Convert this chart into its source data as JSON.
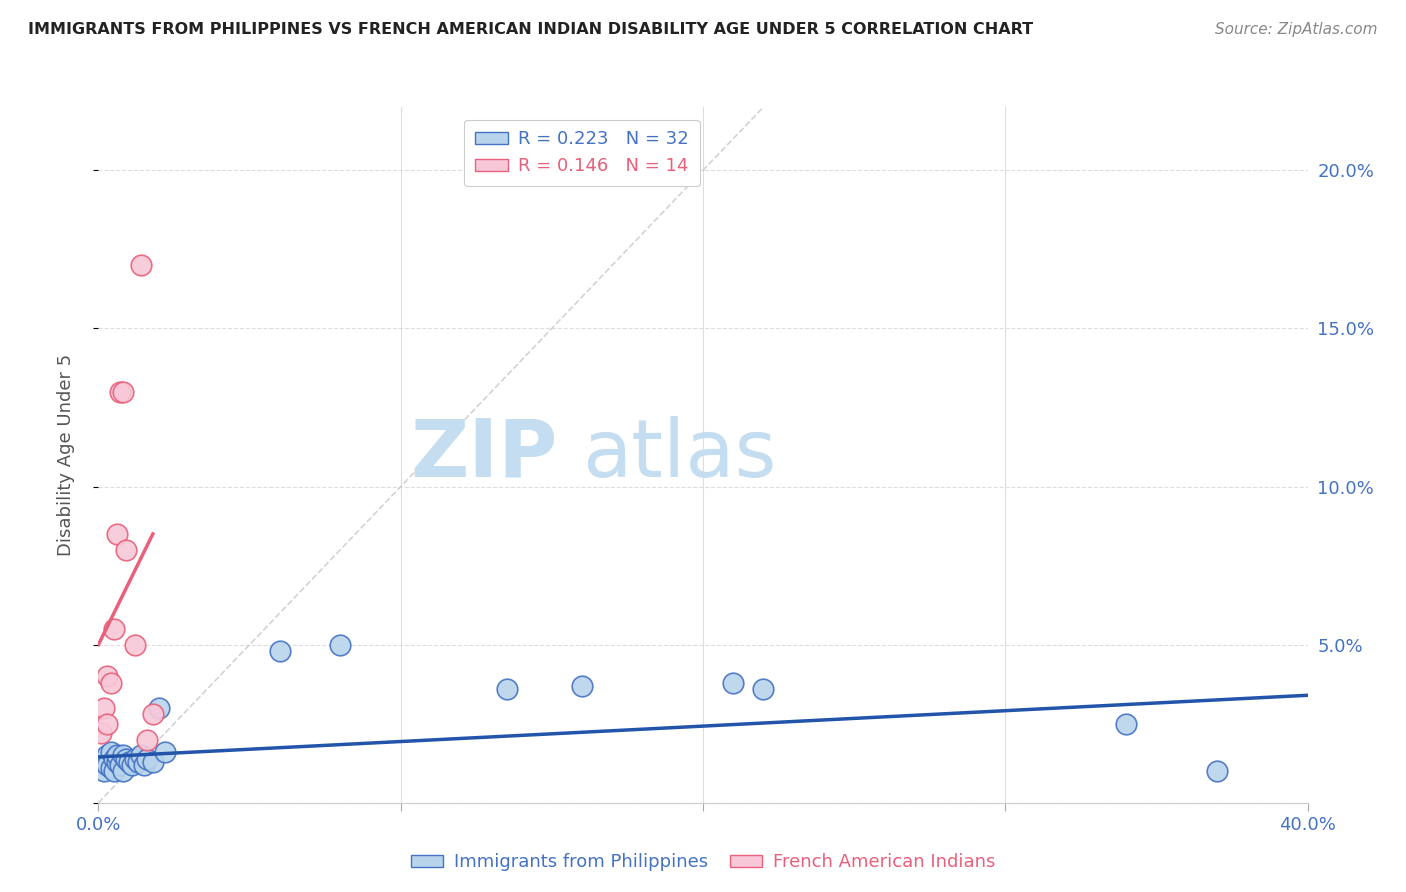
{
  "title": "IMMIGRANTS FROM PHILIPPINES VS FRENCH AMERICAN INDIAN DISABILITY AGE UNDER 5 CORRELATION CHART",
  "source": "Source: ZipAtlas.com",
  "ylabel": "Disability Age Under 5",
  "xlim": [
    0,
    0.4
  ],
  "ylim": [
    0,
    0.22
  ],
  "blue_scatter_x": [
    0.001,
    0.002,
    0.003,
    0.003,
    0.004,
    0.004,
    0.005,
    0.005,
    0.006,
    0.006,
    0.007,
    0.008,
    0.008,
    0.009,
    0.01,
    0.011,
    0.012,
    0.013,
    0.014,
    0.015,
    0.016,
    0.018,
    0.02,
    0.022,
    0.06,
    0.08,
    0.135,
    0.16,
    0.21,
    0.22,
    0.34,
    0.37
  ],
  "blue_scatter_y": [
    0.013,
    0.01,
    0.015,
    0.012,
    0.016,
    0.011,
    0.014,
    0.01,
    0.013,
    0.015,
    0.012,
    0.015,
    0.01,
    0.014,
    0.013,
    0.012,
    0.014,
    0.013,
    0.015,
    0.012,
    0.014,
    0.013,
    0.03,
    0.016,
    0.048,
    0.05,
    0.036,
    0.037,
    0.038,
    0.036,
    0.025,
    0.01
  ],
  "pink_scatter_x": [
    0.001,
    0.002,
    0.003,
    0.003,
    0.004,
    0.005,
    0.006,
    0.007,
    0.008,
    0.009,
    0.012,
    0.014,
    0.016,
    0.018
  ],
  "pink_scatter_y": [
    0.022,
    0.03,
    0.025,
    0.04,
    0.038,
    0.055,
    0.085,
    0.13,
    0.13,
    0.08,
    0.05,
    0.17,
    0.02,
    0.028
  ],
  "blue_R": 0.223,
  "blue_N": 32,
  "pink_R": 0.146,
  "pink_N": 14,
  "blue_marker_color": "#b8d4ed",
  "blue_edge_color": "#4472c4",
  "pink_marker_color": "#f8c8d8",
  "pink_edge_color": "#e8607a",
  "blue_line_color": "#2255aa",
  "pink_line_color": "#e8607a",
  "diag_color": "#c8c8c8",
  "watermark_zip_color": "#c5ddf0",
  "watermark_atlas_color": "#c5ddf0",
  "background_color": "#ffffff",
  "grid_color": "#dddddd"
}
